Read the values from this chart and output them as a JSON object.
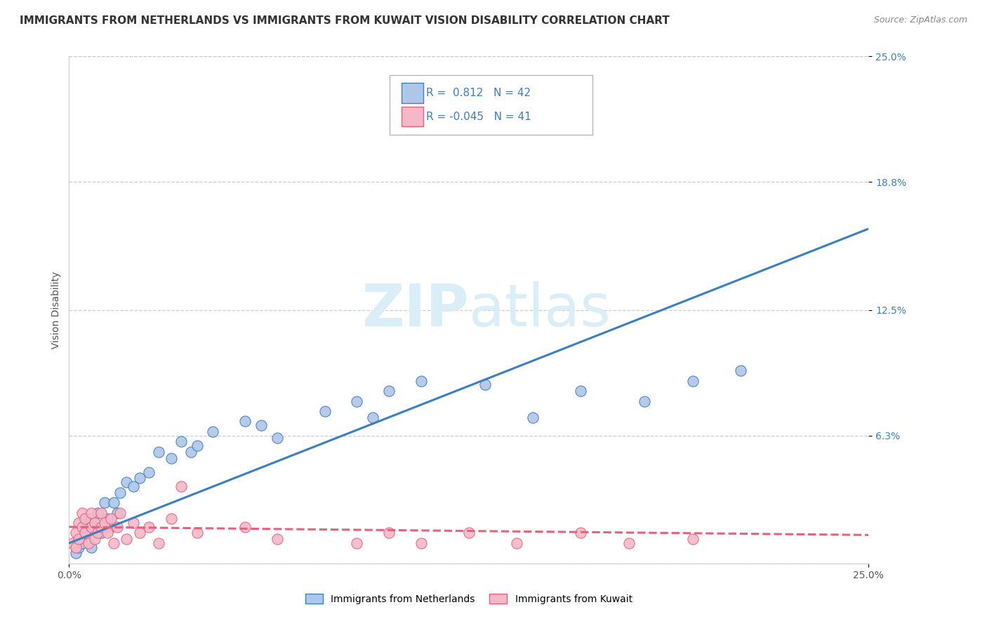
{
  "title": "IMMIGRANTS FROM NETHERLANDS VS IMMIGRANTS FROM KUWAIT VISION DISABILITY CORRELATION CHART",
  "source": "Source: ZipAtlas.com",
  "ylabel": "Vision Disability",
  "x_min": 0.0,
  "x_max": 0.25,
  "y_min": 0.0,
  "y_max": 0.25,
  "y_tick_labels": [
    "25.0%",
    "18.8%",
    "12.5%",
    "6.3%"
  ],
  "y_tick_values": [
    0.25,
    0.188,
    0.125,
    0.063
  ],
  "r_netherlands": 0.812,
  "n_netherlands": 42,
  "r_kuwait": -0.045,
  "n_kuwait": 41,
  "netherlands_color": "#aec6e8",
  "kuwait_color": "#f5b8c8",
  "netherlands_line_color": "#3a7fc1",
  "kuwait_line_color": "#e8607a",
  "background_color": "#ffffff",
  "grid_color": "#c8c8c8",
  "watermark_color": "#daeef8",
  "legend_label_netherlands": "Immigrants from Netherlands",
  "legend_label_kuwait": "Immigrants from Kuwait",
  "nl_line_x0": 0.0,
  "nl_line_y0": 0.01,
  "nl_line_x1": 0.25,
  "nl_line_y1": 0.165,
  "kw_line_x0": 0.0,
  "kw_line_y0": 0.018,
  "kw_line_x1": 0.25,
  "kw_line_y1": 0.014,
  "netherlands_scatter_x": [
    0.002,
    0.003,
    0.003,
    0.004,
    0.005,
    0.005,
    0.006,
    0.007,
    0.007,
    0.008,
    0.009,
    0.01,
    0.011,
    0.012,
    0.013,
    0.014,
    0.015,
    0.016,
    0.018,
    0.02,
    0.022,
    0.025,
    0.028,
    0.032,
    0.035,
    0.038,
    0.04,
    0.045,
    0.055,
    0.06,
    0.065,
    0.08,
    0.09,
    0.095,
    0.1,
    0.11,
    0.13,
    0.145,
    0.16,
    0.18,
    0.195,
    0.21
  ],
  "netherlands_scatter_y": [
    0.005,
    0.008,
    0.012,
    0.01,
    0.015,
    0.018,
    0.02,
    0.008,
    0.022,
    0.018,
    0.025,
    0.015,
    0.03,
    0.022,
    0.018,
    0.03,
    0.025,
    0.035,
    0.04,
    0.038,
    0.042,
    0.045,
    0.055,
    0.052,
    0.06,
    0.055,
    0.058,
    0.065,
    0.07,
    0.068,
    0.062,
    0.075,
    0.08,
    0.072,
    0.085,
    0.09,
    0.088,
    0.072,
    0.085,
    0.08,
    0.09,
    0.095
  ],
  "kuwait_scatter_x": [
    0.001,
    0.002,
    0.002,
    0.003,
    0.003,
    0.004,
    0.004,
    0.005,
    0.005,
    0.006,
    0.007,
    0.007,
    0.008,
    0.008,
    0.009,
    0.01,
    0.01,
    0.011,
    0.012,
    0.013,
    0.014,
    0.015,
    0.016,
    0.018,
    0.02,
    0.022,
    0.025,
    0.028,
    0.032,
    0.04,
    0.055,
    0.065,
    0.09,
    0.1,
    0.11,
    0.125,
    0.14,
    0.16,
    0.175,
    0.195,
    0.035
  ],
  "kuwait_scatter_y": [
    0.01,
    0.015,
    0.008,
    0.02,
    0.012,
    0.018,
    0.025,
    0.015,
    0.022,
    0.01,
    0.018,
    0.025,
    0.012,
    0.02,
    0.015,
    0.025,
    0.018,
    0.02,
    0.015,
    0.022,
    0.01,
    0.018,
    0.025,
    0.012,
    0.02,
    0.015,
    0.018,
    0.01,
    0.022,
    0.015,
    0.018,
    0.012,
    0.01,
    0.015,
    0.01,
    0.015,
    0.01,
    0.015,
    0.01,
    0.012,
    0.038
  ],
  "title_fontsize": 11,
  "axis_label_fontsize": 10,
  "tick_fontsize": 10
}
